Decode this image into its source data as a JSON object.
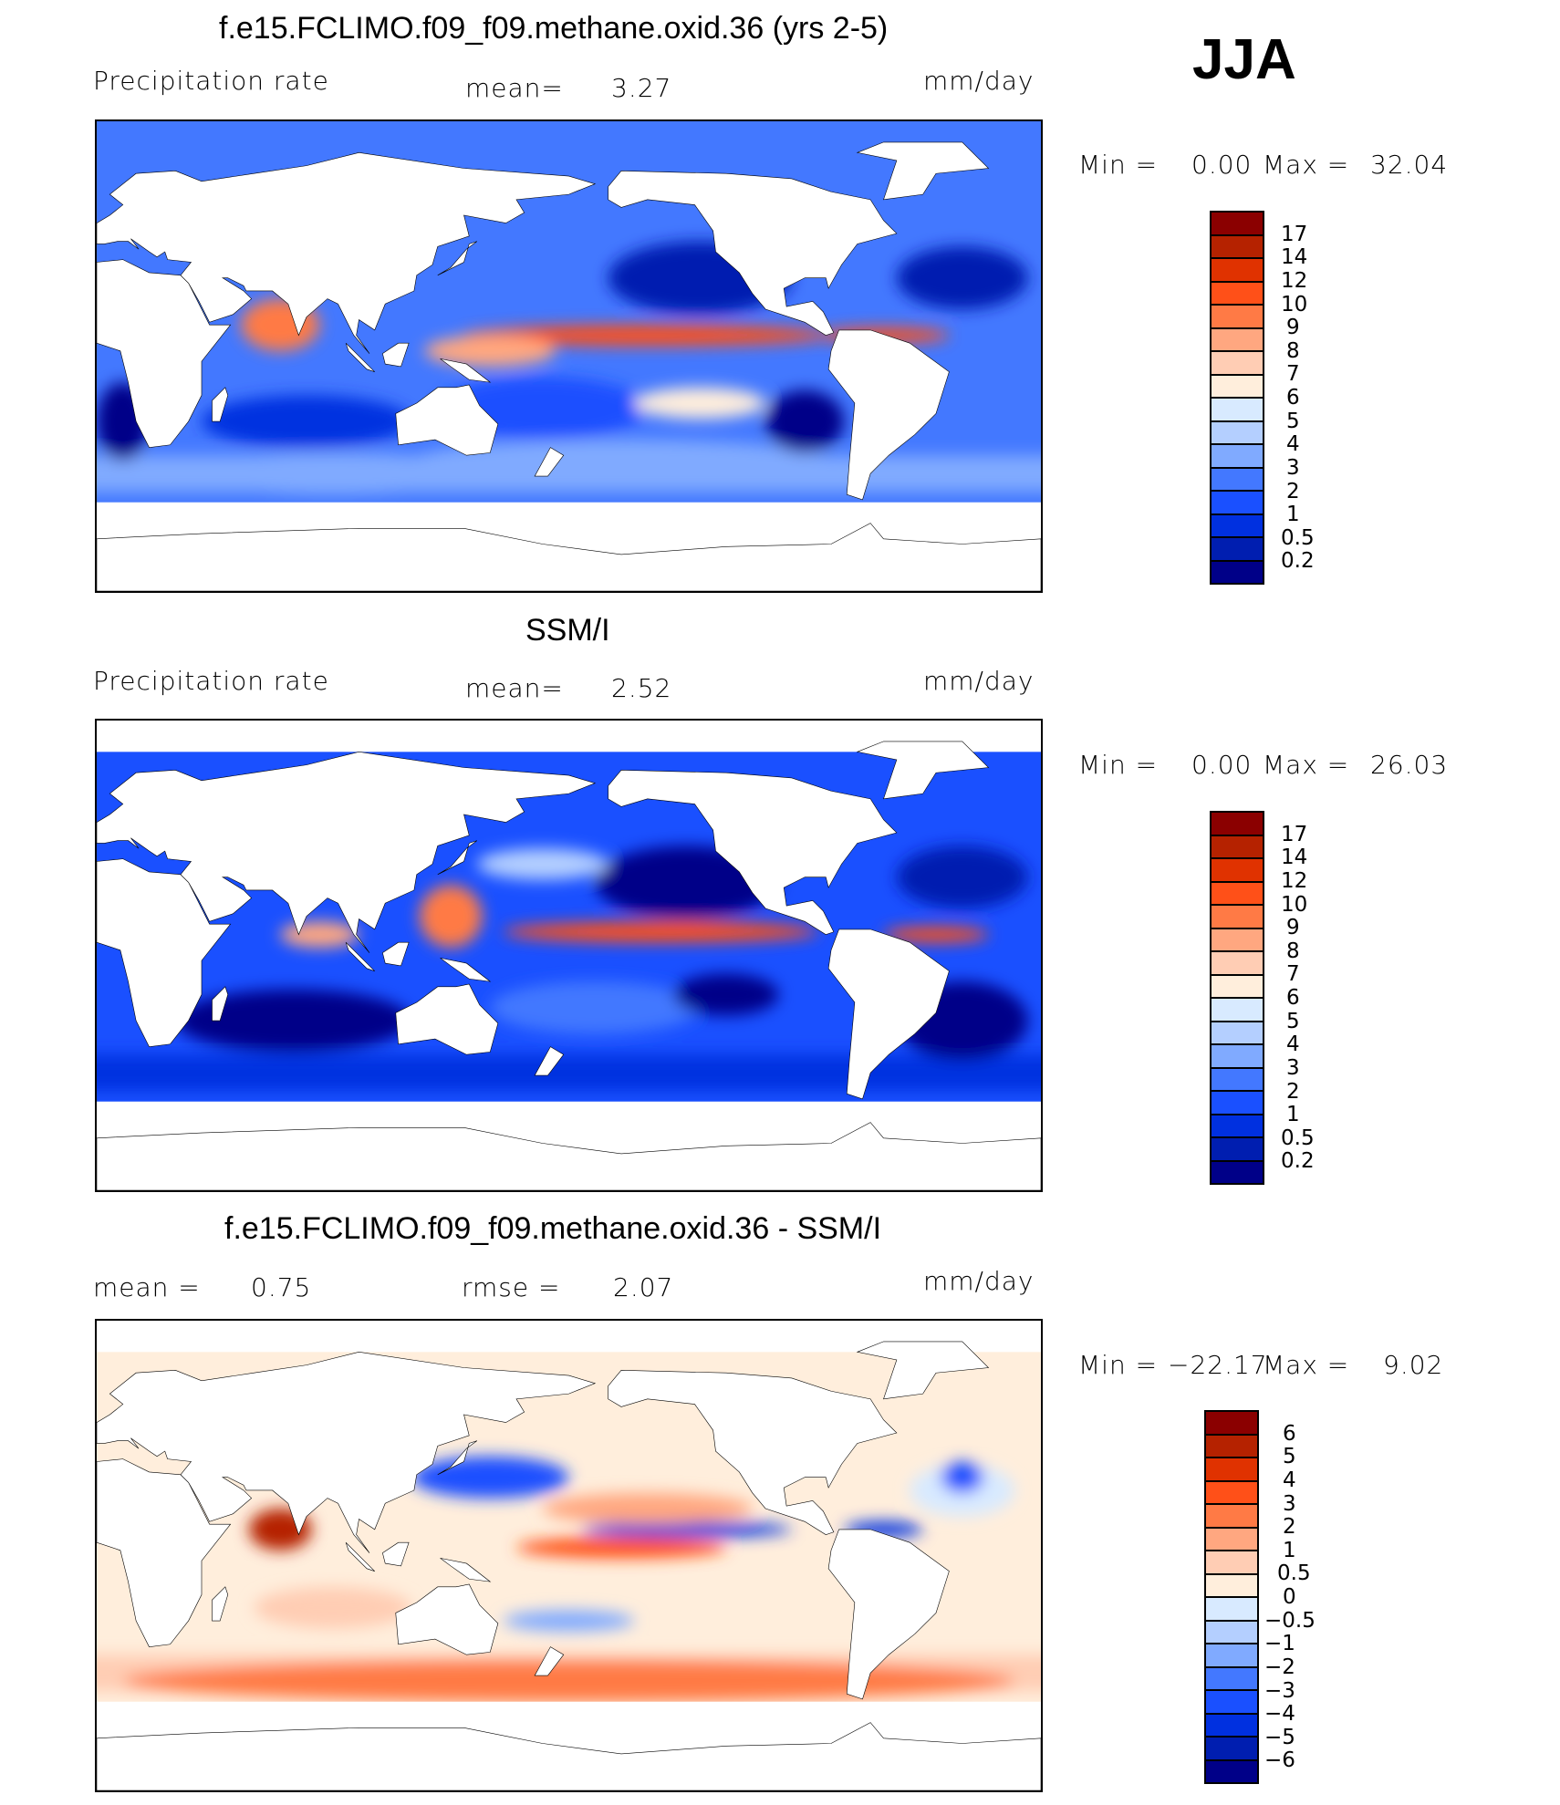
{
  "season": "JJA",
  "units": "mm/day",
  "chart_data": [
    {
      "type": "heatmap",
      "title": "f.e15.FCLIMO.f09_f09.methane.oxid.36 (yrs 2-5)",
      "variable": "Precipitation rate",
      "mean_label": "mean=",
      "mean": "3.27",
      "units": "mm/day",
      "min_label": "Min =",
      "min": "0.00",
      "max_label": "Max =",
      "max": "32.04",
      "colorbar_levels": [
        "17",
        "14",
        "12",
        "10",
        "9",
        "8",
        "7",
        "6",
        "5",
        "4",
        "3",
        "2",
        "1",
        "0.5",
        "0.2"
      ],
      "colors": [
        "#8b0000",
        "#b52200",
        "#e03200",
        "#ff5018",
        "#ff7a45",
        "#ffa780",
        "#ffcdb4",
        "#ffeedc",
        "#d8eaff",
        "#b4cfff",
        "#80aaff",
        "#4378ff",
        "#1a50ff",
        "#0030e0",
        "#001eb0",
        "#000088"
      ]
    },
    {
      "type": "heatmap",
      "title": "SSM/I",
      "variable": "Precipitation rate",
      "mean_label": "mean=",
      "mean": "2.52",
      "units": "mm/day",
      "min_label": "Min =",
      "min": "0.00",
      "max_label": "Max =",
      "max": "26.03",
      "colorbar_levels": [
        "17",
        "14",
        "12",
        "10",
        "9",
        "8",
        "7",
        "6",
        "5",
        "4",
        "3",
        "2",
        "1",
        "0.5",
        "0.2"
      ],
      "colors": [
        "#8b0000",
        "#b52200",
        "#e03200",
        "#ff5018",
        "#ff7a45",
        "#ffa780",
        "#ffcdb4",
        "#ffeedc",
        "#d8eaff",
        "#b4cfff",
        "#80aaff",
        "#4378ff",
        "#1a50ff",
        "#0030e0",
        "#001eb0",
        "#000088"
      ]
    },
    {
      "type": "heatmap",
      "title": "f.e15.FCLIMO.f09_f09.methane.oxid.36 - SSM/I",
      "mean_label": "mean =",
      "mean": "0.75",
      "rmse_label": "rmse =",
      "rmse": "2.07",
      "units": "mm/day",
      "min_label": "Min =",
      "min": "−22.17",
      "max_label": "Max =",
      "max": "9.02",
      "colorbar_levels": [
        "6",
        "5",
        "4",
        "3",
        "2",
        "1",
        "0.5",
        "0",
        "−0.5",
        "−1",
        "−2",
        "−3",
        "−4",
        "−5",
        "−6"
      ],
      "colors": [
        "#8b0000",
        "#b52200",
        "#e03200",
        "#ff5018",
        "#ff7a45",
        "#ffa780",
        "#ffcdb4",
        "#ffeedc",
        "#d8eaff",
        "#b4cfff",
        "#80aaff",
        "#4378ff",
        "#1a50ff",
        "#0030e0",
        "#001eb0",
        "#000088"
      ]
    }
  ]
}
